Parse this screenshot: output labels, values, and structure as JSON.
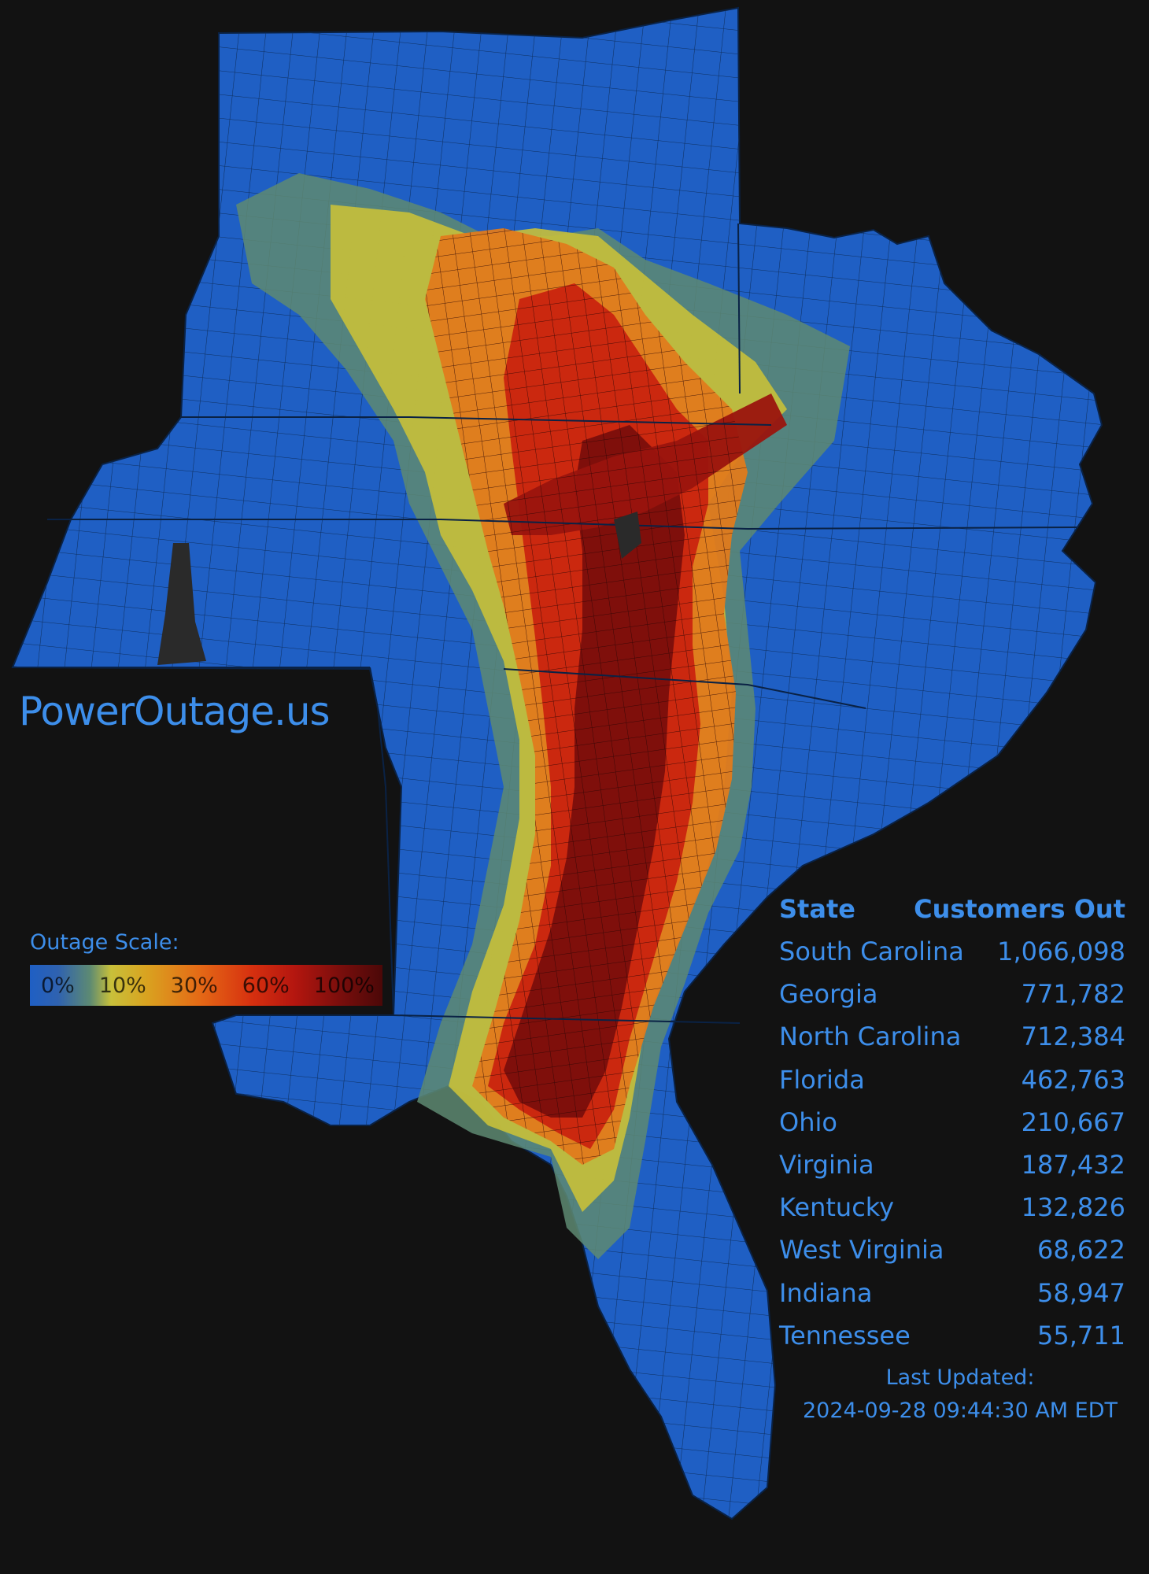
{
  "brand": "PowerOutage.us",
  "legend": {
    "title": "Outage Scale:",
    "stops": [
      "0%",
      "10%",
      "30%",
      "60%",
      "100%"
    ],
    "colors": [
      "#1f5fc4",
      "#c8c03a",
      "#e56a16",
      "#b4160f",
      "#4b0808"
    ]
  },
  "table": {
    "col_state": "State",
    "col_customers": "Customers Out",
    "rows": [
      {
        "state": "South Carolina",
        "customers": "1,066,098"
      },
      {
        "state": "Georgia",
        "customers": "771,782"
      },
      {
        "state": "North Carolina",
        "customers": "712,384"
      },
      {
        "state": "Florida",
        "customers": "462,763"
      },
      {
        "state": "Ohio",
        "customers": "210,667"
      },
      {
        "state": "Virginia",
        "customers": "187,432"
      },
      {
        "state": "Kentucky",
        "customers": "132,826"
      },
      {
        "state": "West Virginia",
        "customers": "68,622"
      },
      {
        "state": "Indiana",
        "customers": "58,947"
      },
      {
        "state": "Tennessee",
        "customers": "55,711"
      }
    ]
  },
  "updated": {
    "label": "Last Updated:",
    "timestamp": "2024-09-28 09:44:30 AM EDT"
  },
  "colors": {
    "background": "#121212",
    "base_county": "#1f5fc4",
    "text_accent": "#3d8eea"
  }
}
